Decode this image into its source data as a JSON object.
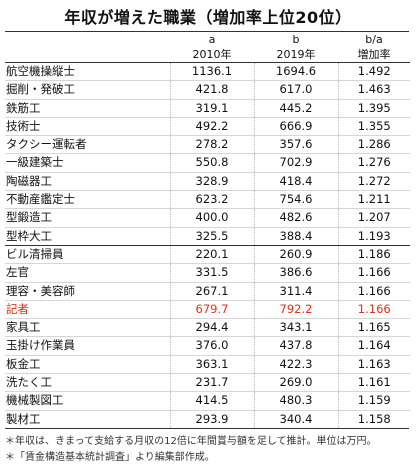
{
  "title": "年収が増えた職業（増加率上位20位）",
  "headers": {
    "col_a_letter": "a",
    "col_a_year": "2010年",
    "col_b_letter": "b",
    "col_b_year": "2019年",
    "col_r_letter": "b/a",
    "col_r_label": "増加率"
  },
  "rows": [
    {
      "name": "航空機操縦士",
      "a": "1136.1",
      "b": "1694.6",
      "r": "1.492"
    },
    {
      "name": "掘削・発破工",
      "a": "421.8",
      "b": "617.0",
      "r": "1.463"
    },
    {
      "name": "鉄筋工",
      "a": "319.1",
      "b": "445.2",
      "r": "1.395"
    },
    {
      "name": "技術士",
      "a": "492.2",
      "b": "666.9",
      "r": "1.355"
    },
    {
      "name": "タクシー運転者",
      "a": "278.2",
      "b": "357.6",
      "r": "1.286"
    },
    {
      "name": "一級建築士",
      "a": "550.8",
      "b": "702.9",
      "r": "1.276"
    },
    {
      "name": "陶磁器工",
      "a": "328.9",
      "b": "418.4",
      "r": "1.272"
    },
    {
      "name": "不動産鑑定士",
      "a": "623.2",
      "b": "754.6",
      "r": "1.211"
    },
    {
      "name": "型鍛造工",
      "a": "400.0",
      "b": "482.6",
      "r": "1.207"
    },
    {
      "name": "型枠大工",
      "a": "325.5",
      "b": "388.4",
      "r": "1.193"
    },
    {
      "name": "ビル清掃員",
      "a": "220.1",
      "b": "260.9",
      "r": "1.186"
    },
    {
      "name": "左官",
      "a": "331.5",
      "b": "386.6",
      "r": "1.166"
    },
    {
      "name": "理容・美容師",
      "a": "267.1",
      "b": "311.4",
      "r": "1.166"
    },
    {
      "name": "記者",
      "a": "679.7",
      "b": "792.2",
      "r": "1.166"
    },
    {
      "name": "家具工",
      "a": "294.4",
      "b": "343.1",
      "r": "1.165"
    },
    {
      "name": "玉掛け作業員",
      "a": "376.0",
      "b": "437.8",
      "r": "1.164"
    },
    {
      "name": "板金工",
      "a": "363.1",
      "b": "422.3",
      "r": "1.163"
    },
    {
      "name": "洗たく工",
      "a": "231.7",
      "b": "269.0",
      "r": "1.161"
    },
    {
      "name": "機械製図工",
      "a": "414.5",
      "b": "480.3",
      "r": "1.159"
    },
    {
      "name": "製材工",
      "a": "293.9",
      "b": "340.4",
      "r": "1.158"
    }
  ],
  "highlight_color": "#e0301e",
  "notes": [
    "＊年収は、きまって支給する月収の12倍に年間賞与額を足して推計。単位は万円。",
    "＊「賃金構造基本統計調査」より編集部作成。"
  ]
}
